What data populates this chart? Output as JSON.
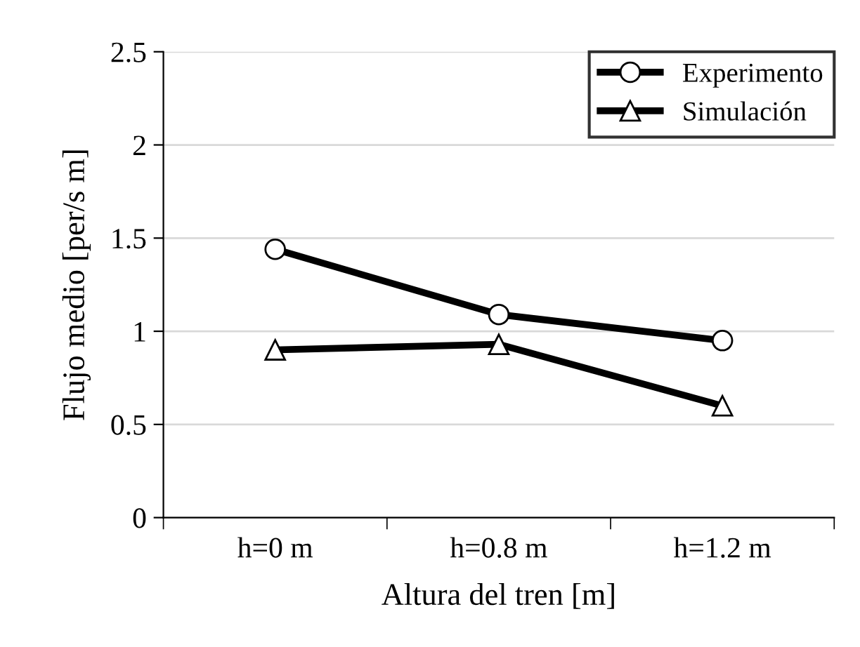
{
  "chart_data": {
    "type": "line",
    "xlabel": "Altura del tren [m]",
    "ylabel": "Flujo medio [per/s m]",
    "categories": [
      "h=0 m",
      "h=0.8 m",
      "h=1.2 m"
    ],
    "series": [
      {
        "name": "Experimento",
        "color": "#000000",
        "marker": "circle",
        "values": [
          1.44,
          1.09,
          0.95
        ]
      },
      {
        "name": "Simulación",
        "color": "#000000",
        "marker": "triangle",
        "values": [
          0.9,
          0.93,
          0.6
        ]
      }
    ],
    "ylim": [
      0,
      2.5
    ],
    "yticks": [
      0,
      0.5,
      1,
      1.5,
      2,
      2.5
    ],
    "grid": "y",
    "legend": "top right",
    "line_style": "solid"
  }
}
